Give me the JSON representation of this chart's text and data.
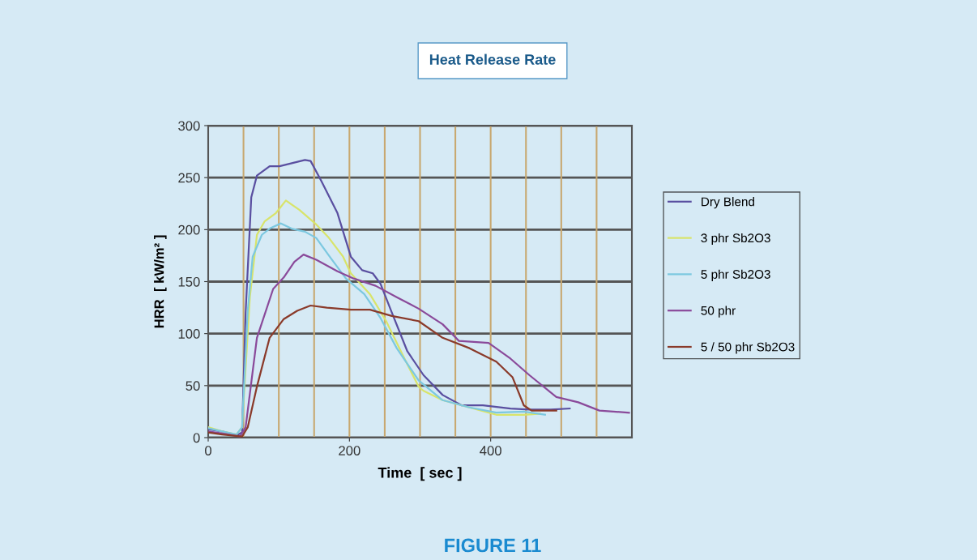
{
  "chart_data": {
    "type": "line",
    "title": "Heat Release Rate",
    "xlabel": "Time  [ sec ]",
    "ylabel": "HRR  [ kW/m² ]",
    "annotations": [
      "FIGURE 11"
    ],
    "xlim": [
      0,
      600
    ],
    "xticks": [
      0,
      200,
      400
    ],
    "ylim": [
      0,
      300
    ],
    "yticks": [
      0,
      50,
      100,
      150,
      200,
      250,
      300
    ],
    "grid": true,
    "legend": "right",
    "line_style": "solid",
    "series": [
      {
        "name": "Dry Blend",
        "color": "#5a4fa0",
        "x": [
          0,
          20,
          40,
          48,
          53,
          55,
          61,
          69,
          87,
          101,
          137,
          145,
          160,
          183,
          202,
          218,
          233,
          244,
          259,
          282,
          305,
          332,
          359,
          389,
          428,
          455,
          485,
          512
        ],
        "values": [
          8,
          6,
          2,
          5,
          120,
          148,
          231,
          252,
          261,
          261,
          267,
          266,
          247,
          216,
          174,
          161,
          158,
          148,
          122,
          83,
          60,
          41,
          31,
          31,
          28,
          27,
          27,
          28
        ]
      },
      {
        "name": "3 phr Sb2O3",
        "color": "#d8e46a",
        "x": [
          0,
          20,
          40,
          48,
          59,
          69,
          80,
          96,
          110,
          129,
          153,
          171,
          191,
          202,
          229,
          252,
          275,
          298,
          305,
          332,
          370,
          408,
          447,
          470
        ],
        "values": [
          10,
          6,
          3,
          10,
          135,
          195,
          208,
          216,
          228,
          219,
          205,
          192,
          174,
          158,
          138,
          112,
          80,
          49,
          45,
          36,
          29,
          22,
          22,
          23
        ]
      },
      {
        "name": "5 phr Sb2O3",
        "color": "#7cc8e0",
        "x": [
          0,
          20,
          40,
          48,
          56,
          63,
          76,
          87,
          103,
          118,
          137,
          153,
          172,
          195,
          221,
          244,
          267,
          298,
          332,
          370,
          408,
          447,
          477
        ],
        "values": [
          9,
          6,
          3,
          10,
          122,
          174,
          195,
          201,
          206,
          201,
          198,
          192,
          174,
          153,
          138,
          115,
          86,
          55,
          36,
          29,
          24,
          25,
          22
        ]
      },
      {
        "name": "50 phr",
        "color": "#8a4a9a",
        "x": [
          0,
          20,
          45,
          53,
          69,
          92,
          107,
          122,
          135,
          153,
          183,
          206,
          237,
          267,
          298,
          332,
          355,
          397,
          428,
          455,
          493,
          524,
          554,
          596
        ],
        "values": [
          6,
          4,
          1,
          10,
          96,
          143,
          154,
          169,
          176,
          171,
          160,
          153,
          146,
          135,
          124,
          109,
          93,
          91,
          76,
          60,
          39,
          34,
          26,
          24
        ]
      },
      {
        "name": "5 / 50 phr Sb2O3",
        "color": "#8a3a2a",
        "x": [
          0,
          20,
          48,
          56,
          69,
          87,
          107,
          126,
          145,
          168,
          202,
          229,
          260,
          298,
          332,
          370,
          408,
          431,
          447,
          458,
          493
        ],
        "values": [
          5,
          3,
          1,
          10,
          49,
          96,
          114,
          122,
          127,
          125,
          123,
          123,
          117,
          112,
          96,
          86,
          73,
          58,
          31,
          26,
          26
        ]
      }
    ]
  }
}
